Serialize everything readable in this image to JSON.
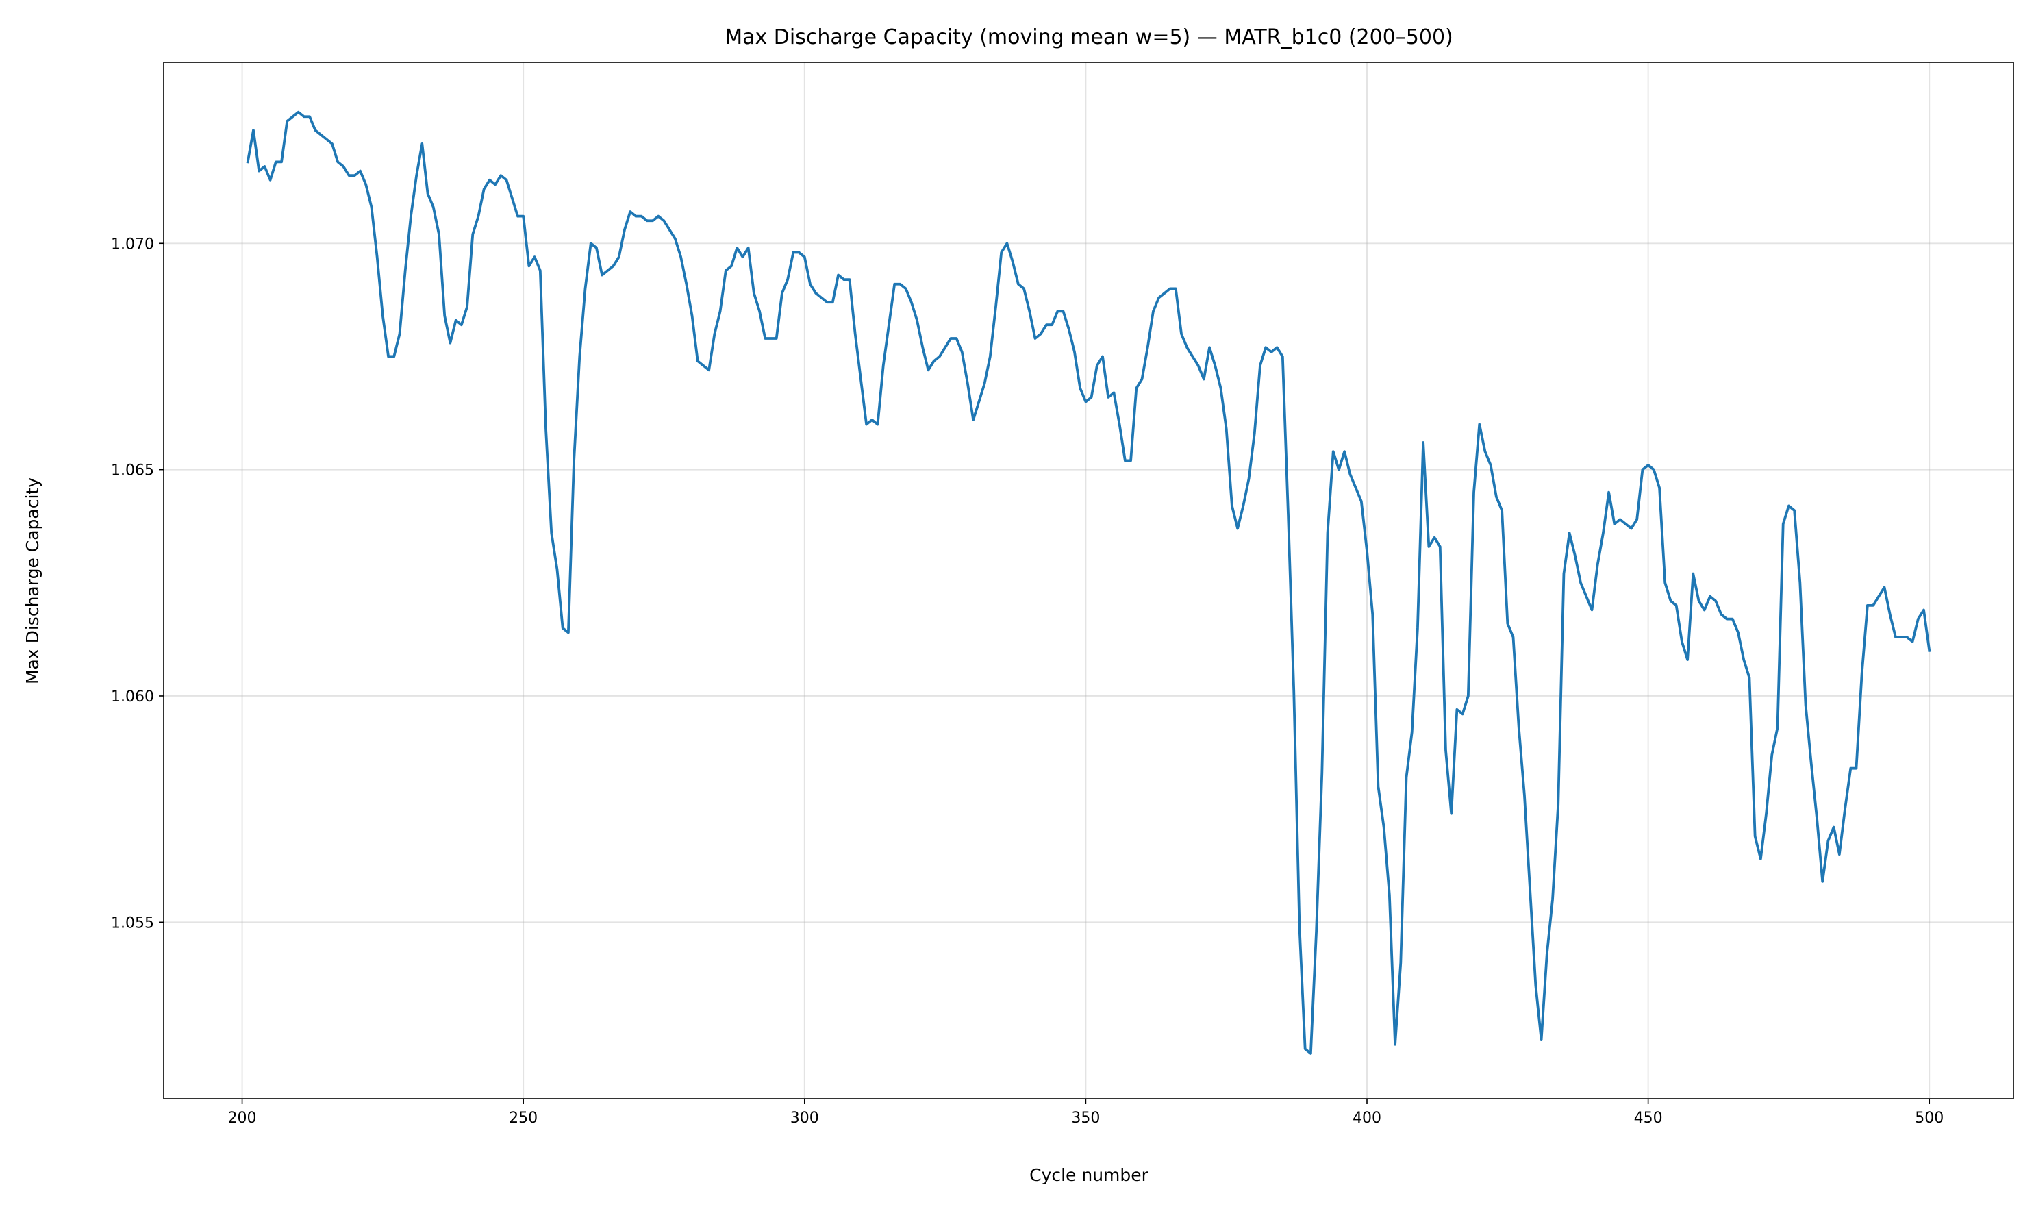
{
  "chart_data": {
    "type": "line",
    "title": "Max Discharge Capacity (moving mean w=5) — MATR_b1c0 (200–500)",
    "xlabel": "Cycle number",
    "ylabel": "Max Discharge Capacity",
    "xlim": [
      186.05,
      514.95
    ],
    "ylim": [
      1.0511,
      1.074
    ],
    "xticks": [
      200,
      250,
      300,
      350,
      400,
      450,
      500
    ],
    "yticks": [
      {
        "value": 1.055,
        "label": "1.055"
      },
      {
        "value": 1.06,
        "label": "1.060"
      },
      {
        "value": 1.065,
        "label": "1.065"
      },
      {
        "value": 1.07,
        "label": "1.070"
      }
    ],
    "grid": true,
    "x": [
      201,
      202,
      203,
      204,
      205,
      206,
      207,
      208,
      209,
      210,
      211,
      212,
      213,
      214,
      215,
      216,
      217,
      218,
      219,
      220,
      221,
      222,
      223,
      224,
      225,
      226,
      227,
      228,
      229,
      230,
      231,
      232,
      233,
      234,
      235,
      236,
      237,
      238,
      239,
      240,
      241,
      242,
      243,
      244,
      245,
      246,
      247,
      248,
      249,
      250,
      251,
      252,
      253,
      254,
      255,
      256,
      257,
      258,
      259,
      260,
      261,
      262,
      263,
      264,
      265,
      266,
      267,
      268,
      269,
      270,
      271,
      272,
      273,
      274,
      275,
      276,
      277,
      278,
      279,
      280,
      281,
      282,
      283,
      284,
      285,
      286,
      287,
      288,
      289,
      290,
      291,
      292,
      293,
      294,
      295,
      296,
      297,
      298,
      299,
      300,
      301,
      302,
      303,
      304,
      305,
      306,
      307,
      308,
      309,
      310,
      311,
      312,
      313,
      314,
      315,
      316,
      317,
      318,
      319,
      320,
      321,
      322,
      323,
      324,
      325,
      326,
      327,
      328,
      329,
      330,
      331,
      332,
      333,
      334,
      335,
      336,
      337,
      338,
      339,
      340,
      341,
      342,
      343,
      344,
      345,
      346,
      347,
      348,
      349,
      350,
      351,
      352,
      353,
      354,
      355,
      356,
      357,
      358,
      359,
      360,
      361,
      362,
      363,
      364,
      365,
      366,
      367,
      368,
      369,
      370,
      371,
      372,
      373,
      374,
      375,
      376,
      377,
      378,
      379,
      380,
      381,
      382,
      383,
      384,
      385,
      386,
      387,
      388,
      389,
      390,
      391,
      392,
      393,
      394,
      395,
      396,
      397,
      398,
      399,
      400,
      401,
      402,
      403,
      404,
      405,
      406,
      407,
      408,
      409,
      410,
      411,
      412,
      413,
      414,
      415,
      416,
      417,
      418,
      419,
      420,
      421,
      422,
      423,
      424,
      425,
      426,
      427,
      428,
      429,
      430,
      431,
      432,
      433,
      434,
      435,
      436,
      437,
      438,
      439,
      440,
      441,
      442,
      443,
      444,
      445,
      446,
      447,
      448,
      449,
      450,
      451,
      452,
      453,
      454,
      455,
      456,
      457,
      458,
      459,
      460,
      461,
      462,
      463,
      464,
      465,
      466,
      467,
      468,
      469,
      470,
      471,
      472,
      473,
      474,
      475,
      476,
      477,
      478,
      479,
      480,
      481,
      482,
      483,
      484,
      485,
      486,
      487,
      488,
      489,
      490,
      491,
      492,
      493,
      494,
      495,
      496,
      497,
      498,
      499,
      500
    ],
    "series": [
      {
        "color": "#1f77b4",
        "values": [
          1.0718,
          1.0725,
          1.0716,
          1.0717,
          1.0714,
          1.0718,
          1.0718,
          1.0727,
          1.0728,
          1.0729,
          1.0728,
          1.0728,
          1.0725,
          1.0724,
          1.0723,
          1.0722,
          1.0718,
          1.0717,
          1.0715,
          1.0715,
          1.0716,
          1.0713,
          1.0708,
          1.0697,
          1.0684,
          1.0675,
          1.0675,
          1.068,
          1.0694,
          1.0706,
          1.0715,
          1.0722,
          1.0711,
          1.0708,
          1.0702,
          1.0684,
          1.0678,
          1.0683,
          1.0682,
          1.0686,
          1.0702,
          1.0706,
          1.0712,
          1.0714,
          1.0713,
          1.0715,
          1.0714,
          1.071,
          1.0706,
          1.0706,
          1.0695,
          1.0697,
          1.0694,
          1.0659,
          1.0636,
          1.0628,
          1.0615,
          1.0614,
          1.0652,
          1.0675,
          1.069,
          1.07,
          1.0699,
          1.0693,
          1.0694,
          1.0695,
          1.0697,
          1.0703,
          1.0707,
          1.0706,
          1.0706,
          1.0705,
          1.0705,
          1.0706,
          1.0705,
          1.0703,
          1.0701,
          1.0697,
          1.0691,
          1.0684,
          1.0674,
          1.0673,
          1.0672,
          1.068,
          1.0685,
          1.0694,
          1.0695,
          1.0699,
          1.0697,
          1.0699,
          1.0689,
          1.0685,
          1.0679,
          1.0679,
          1.0679,
          1.0689,
          1.0692,
          1.0698,
          1.0698,
          1.0697,
          1.0691,
          1.0689,
          1.0688,
          1.0687,
          1.0687,
          1.0693,
          1.0692,
          1.0692,
          1.068,
          1.067,
          1.066,
          1.0661,
          1.066,
          1.0673,
          1.0682,
          1.0691,
          1.0691,
          1.069,
          1.0687,
          1.0683,
          1.0677,
          1.0672,
          1.0674,
          1.0675,
          1.0677,
          1.0679,
          1.0679,
          1.0676,
          1.0669,
          1.0661,
          1.0665,
          1.0669,
          1.0675,
          1.0686,
          1.0698,
          1.07,
          1.0696,
          1.0691,
          1.069,
          1.0685,
          1.0679,
          1.068,
          1.0682,
          1.0682,
          1.0685,
          1.0685,
          1.0681,
          1.0676,
          1.0668,
          1.0665,
          1.0666,
          1.0673,
          1.0675,
          1.0666,
          1.0667,
          1.066,
          1.0652,
          1.0652,
          1.0668,
          1.067,
          1.0677,
          1.0685,
          1.0688,
          1.0689,
          1.069,
          1.069,
          1.068,
          1.0677,
          1.0675,
          1.0673,
          1.067,
          1.0677,
          1.0673,
          1.0668,
          1.0659,
          1.0642,
          1.0637,
          1.0642,
          1.0648,
          1.0658,
          1.0673,
          1.0677,
          1.0676,
          1.0677,
          1.0675,
          1.064,
          1.0601,
          1.0549,
          1.0522,
          1.0521,
          1.0548,
          1.0583,
          1.0636,
          1.0654,
          1.065,
          1.0654,
          1.0649,
          1.0646,
          1.0643,
          1.0632,
          1.0618,
          1.058,
          1.0571,
          1.0556,
          1.0523,
          1.0541,
          1.0582,
          1.0592,
          1.0615,
          1.0656,
          1.0633,
          1.0635,
          1.0633,
          1.0588,
          1.0574,
          1.0597,
          1.0596,
          1.06,
          1.0645,
          1.066,
          1.0654,
          1.0651,
          1.0644,
          1.0641,
          1.0616,
          1.0613,
          1.0593,
          1.0578,
          1.0557,
          1.0536,
          1.0524,
          1.0543,
          1.0555,
          1.0576,
          1.0627,
          1.0636,
          1.0631,
          1.0625,
          1.0622,
          1.0619,
          1.0629,
          1.0636,
          1.0645,
          1.0638,
          1.0639,
          1.0638,
          1.0637,
          1.0639,
          1.065,
          1.0651,
          1.065,
          1.0646,
          1.0625,
          1.0621,
          1.062,
          1.0612,
          1.0608,
          1.0627,
          1.0621,
          1.0619,
          1.0622,
          1.0621,
          1.0618,
          1.0617,
          1.0617,
          1.0614,
          1.0608,
          1.0604,
          1.0569,
          1.0564,
          1.0574,
          1.0587,
          1.0593,
          1.0638,
          1.0642,
          1.0641,
          1.0625,
          1.0598,
          1.0585,
          1.0573,
          1.0559,
          1.0568,
          1.0571,
          1.0565,
          1.0575,
          1.0584,
          1.0584,
          1.0605,
          1.062,
          1.062,
          1.0622,
          1.0624,
          1.0618,
          1.0613,
          1.0613,
          1.0613,
          1.0612,
          1.0617,
          1.0619,
          1.061
        ]
      }
    ]
  }
}
